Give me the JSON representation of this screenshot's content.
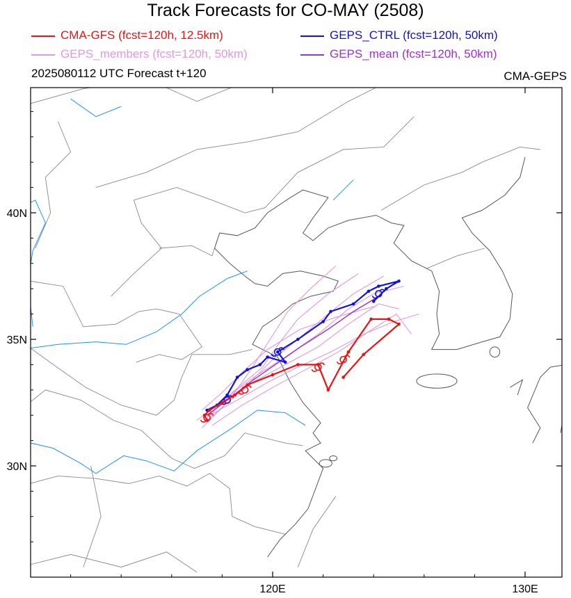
{
  "title": "Track Forecasts for CO-MAY (2508)",
  "legend": [
    {
      "label": "CMA-GFS (fcst=120h, 12.5km)",
      "color": "#ee1111"
    },
    {
      "label": "GEPS_CTRL (fcst=120h, 50km)",
      "color": "#1111dd"
    },
    {
      "label": "GEPS_members (fcst=120h, 50km)",
      "color": "#dd99dd"
    },
    {
      "label": "GEPS_mean (fcst=120h, 50km)",
      "color": "#9933cc"
    }
  ],
  "init_text": "2025080112 UTC Forecast t+120",
  "model_text": "CMA-GEPS",
  "axes": {
    "lon_range": [
      110,
      132
    ],
    "lat_range": [
      26,
      45.5
    ],
    "x_ticks": [
      "120E",
      "130E"
    ],
    "y_ticks": [
      "40N",
      "35N",
      "30N"
    ]
  },
  "colors": {
    "coast": "#555555",
    "border": "#888888",
    "river": "#1e90ff"
  },
  "chart_data": {
    "type": "map-tracks",
    "series": [
      {
        "name": "CMA-GFS",
        "color": "#ee1111",
        "points": [
          [
            117.4,
            31.8
          ],
          [
            117.3,
            32.0
          ],
          [
            117.5,
            32.2
          ],
          [
            118.0,
            32.5
          ],
          [
            118.5,
            32.8
          ],
          [
            119.0,
            33.2
          ],
          [
            120.0,
            33.6
          ],
          [
            121.0,
            34.0
          ],
          [
            121.8,
            34.0
          ],
          [
            122.2,
            33.0
          ],
          [
            123.0,
            34.5
          ],
          [
            123.9,
            35.8
          ],
          [
            124.6,
            35.8
          ],
          [
            125.0,
            35.6
          ],
          [
            123.6,
            34.4
          ],
          [
            122.8,
            33.5
          ]
        ],
        "typhoon_marks": [
          [
            117.4,
            31.9
          ],
          [
            118.9,
            33.0
          ],
          [
            121.8,
            33.9
          ],
          [
            122.8,
            34.2
          ]
        ]
      },
      {
        "name": "GEPS_CTRL",
        "color": "#1111dd",
        "points": [
          [
            117.4,
            32.2
          ],
          [
            117.8,
            32.4
          ],
          [
            118.2,
            32.8
          ],
          [
            118.6,
            33.5
          ],
          [
            119.0,
            33.8
          ],
          [
            119.5,
            34.0
          ],
          [
            119.8,
            34.3
          ],
          [
            120.5,
            34.1
          ],
          [
            120.2,
            34.5
          ],
          [
            121.0,
            35.0
          ],
          [
            122.0,
            35.7
          ],
          [
            122.3,
            36.1
          ],
          [
            123.2,
            36.4
          ],
          [
            123.8,
            36.9
          ],
          [
            124.2,
            37.1
          ],
          [
            125.0,
            37.3
          ],
          [
            124.5,
            37.0
          ],
          [
            124.0,
            36.5
          ]
        ],
        "typhoon_marks": [
          [
            118.2,
            32.6
          ],
          [
            120.2,
            34.5
          ],
          [
            124.2,
            36.8
          ]
        ]
      },
      {
        "name": "GEPS_members",
        "color": "#dd99dd",
        "tracks": [
          [
            [
              117.2,
              31.5
            ],
            [
              118.0,
              32.3
            ],
            [
              119.0,
              33.2
            ],
            [
              120.0,
              34.2
            ],
            [
              121.0,
              35.0
            ],
            [
              122.2,
              36.0
            ],
            [
              123.2,
              36.8
            ],
            [
              124.4,
              37.5
            ]
          ],
          [
            [
              117.0,
              31.8
            ],
            [
              118.3,
              32.8
            ],
            [
              119.4,
              33.6
            ],
            [
              120.5,
              34.3
            ],
            [
              121.8,
              35.2
            ],
            [
              123.0,
              36.2
            ],
            [
              124.0,
              36.8
            ],
            [
              125.2,
              37.1
            ]
          ],
          [
            [
              117.4,
              31.9
            ],
            [
              118.4,
              32.9
            ],
            [
              119.6,
              33.9
            ],
            [
              120.3,
              34.9
            ],
            [
              121.0,
              35.8
            ],
            [
              122.2,
              36.8
            ],
            [
              123.4,
              37.6
            ]
          ],
          [
            [
              117.5,
              32.0
            ],
            [
              118.6,
              32.6
            ],
            [
              119.8,
              33.3
            ],
            [
              121.0,
              33.9
            ],
            [
              122.3,
              34.5
            ],
            [
              123.6,
              35.2
            ],
            [
              124.8,
              35.7
            ],
            [
              125.8,
              36.0
            ]
          ],
          [
            [
              117.3,
              31.7
            ],
            [
              118.2,
              32.5
            ],
            [
              119.2,
              33.3
            ],
            [
              120.5,
              34.0
            ],
            [
              121.8,
              34.7
            ],
            [
              123.0,
              35.6
            ],
            [
              124.2,
              36.4
            ],
            [
              125.0,
              36.2
            ]
          ],
          [
            [
              117.6,
              32.1
            ],
            [
              118.5,
              32.9
            ],
            [
              119.2,
              33.9
            ],
            [
              119.9,
              35.0
            ],
            [
              120.6,
              36.1
            ],
            [
              121.5,
              37.0
            ],
            [
              122.5,
              37.9
            ]
          ],
          [
            [
              117.2,
              32.2
            ],
            [
              118.0,
              32.9
            ],
            [
              118.8,
              33.7
            ],
            [
              119.8,
              34.6
            ],
            [
              121.1,
              35.4
            ],
            [
              122.6,
              35.9
            ],
            [
              124.0,
              36.3
            ]
          ],
          [
            [
              117.6,
              31.6
            ],
            [
              118.8,
              32.4
            ],
            [
              120.0,
              33.1
            ],
            [
              121.3,
              33.8
            ],
            [
              122.6,
              34.5
            ],
            [
              123.8,
              35.3
            ],
            [
              124.9,
              36.0
            ],
            [
              125.5,
              35.2
            ]
          ]
        ]
      },
      {
        "name": "GEPS_mean",
        "color": "#9933cc",
        "points": [
          [
            117.4,
            32.0
          ],
          [
            118.2,
            32.6
          ],
          [
            119.1,
            33.3
          ],
          [
            120.1,
            34.0
          ],
          [
            121.1,
            34.7
          ],
          [
            122.2,
            35.4
          ],
          [
            123.2,
            36.1
          ],
          [
            124.2,
            36.7
          ]
        ]
      }
    ]
  }
}
